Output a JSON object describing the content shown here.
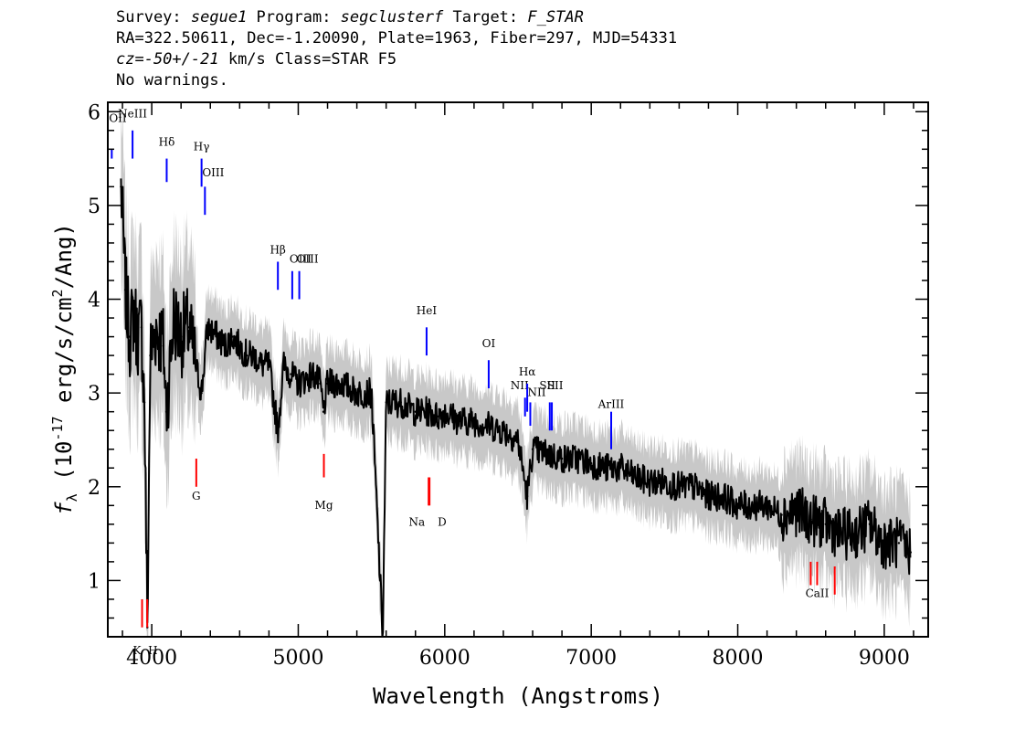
{
  "header": {
    "line1": {
      "survey_label": "Survey: ",
      "survey": "segue1",
      "program_label": " Program: ",
      "program": "segclusterf",
      "target_label": " Target: ",
      "target": "F_STAR"
    },
    "line2": "RA=322.50611, Dec=-1.20090, Plate=1963, Fiber=297, MJD=54331",
    "line3": {
      "cz": "cz=-50+/-21",
      "rest": " km/s Class=STAR F5"
    },
    "line4": "No warnings."
  },
  "colors": {
    "spectrum": "#000000",
    "error": "#c8c8c8",
    "emission_line": "#0000ff",
    "absorption_line": "#ff0000"
  },
  "chart_data": {
    "type": "line",
    "title": "",
    "xlabel": "Wavelength (Angstroms)",
    "ylabel": "f_λ (10^-17 erg/s/cm^2/Ang)",
    "xlim": [
      3700,
      9300
    ],
    "ylim": [
      0.4,
      6.1
    ],
    "xticks": [
      4000,
      5000,
      6000,
      7000,
      8000,
      9000
    ],
    "yticks": [
      1,
      2,
      3,
      4,
      5,
      6
    ],
    "grid": false,
    "series": [
      {
        "x": [
          3790,
          3820,
          3850,
          3880,
          3900,
          3930,
          3950,
          3970,
          3990,
          4030,
          4080,
          4100,
          4150,
          4200,
          4250,
          4300,
          4340,
          4380,
          4450,
          4500,
          4550,
          4600,
          4650,
          4700,
          4750,
          4800,
          4861,
          4900,
          4950,
          5000,
          5100,
          5150,
          5172,
          5200,
          5300,
          5400,
          5500,
          5577,
          5600,
          5700,
          5800,
          5890,
          5950,
          6000,
          6100,
          6200,
          6300,
          6400,
          6500,
          6563,
          6600,
          6700,
          6800,
          6900,
          7000,
          7100,
          7200,
          7300,
          7400,
          7500,
          7600,
          7700,
          7800,
          7900,
          8000,
          8100,
          8200,
          8300,
          8400,
          8500,
          8600,
          8700,
          8800,
          8900,
          9000,
          9100,
          9180
        ],
        "y": [
          5.2,
          4.1,
          3.6,
          3.9,
          3.6,
          3.7,
          2.9,
          0.5,
          3.4,
          3.7,
          3.5,
          2.8,
          3.8,
          3.6,
          3.7,
          3.3,
          3.0,
          3.7,
          3.6,
          3.5,
          3.6,
          3.5,
          3.4,
          3.4,
          3.3,
          3.3,
          2.6,
          3.3,
          3.2,
          3.1,
          3.2,
          3.1,
          2.8,
          3.1,
          3.1,
          3.0,
          3.0,
          0.4,
          2.9,
          2.9,
          2.8,
          2.8,
          2.75,
          2.8,
          2.7,
          2.7,
          2.65,
          2.6,
          2.5,
          1.9,
          2.4,
          2.35,
          2.3,
          2.3,
          2.25,
          2.2,
          2.2,
          2.1,
          2.05,
          2.05,
          2.0,
          2.0,
          1.9,
          1.9,
          1.8,
          1.8,
          1.8,
          1.7,
          1.75,
          1.65,
          1.6,
          1.5,
          1.5,
          1.6,
          1.4,
          1.4,
          1.3
        ]
      }
    ],
    "emission_lines": [
      {
        "label": "OII",
        "wave": 3727
      },
      {
        "label": "NeIII",
        "wave": 3869
      },
      {
        "label": "Hδ",
        "wave": 4102
      },
      {
        "label": "Hγ",
        "wave": 4340
      },
      {
        "label": "OIII",
        "wave": 4363
      },
      {
        "label": "Hβ",
        "wave": 4861
      },
      {
        "label": "OIII",
        "wave": 4959
      },
      {
        "label": "OIII",
        "wave": 5007
      },
      {
        "label": "HeI",
        "wave": 5876
      },
      {
        "label": "OI",
        "wave": 6300
      },
      {
        "label": "NII",
        "wave": 6548
      },
      {
        "label": "Hα",
        "wave": 6563
      },
      {
        "label": "NII",
        "wave": 6584
      },
      {
        "label": "SII",
        "wave": 6717
      },
      {
        "label": "SII",
        "wave": 6731
      },
      {
        "label": "ArIII",
        "wave": 7136
      }
    ],
    "absorption_lines": [
      {
        "label": "K",
        "wave": 3934
      },
      {
        "label": "H",
        "wave": 3969
      },
      {
        "label": "G",
        "wave": 4304
      },
      {
        "label": "Mg",
        "wave": 5175
      },
      {
        "label": "Na",
        "wave": 5890
      },
      {
        "label": "D",
        "wave": 5896
      },
      {
        "label": "CaII",
        "wave": 8498
      },
      {
        "label": "CaII",
        "wave": 8542
      },
      {
        "label": "CaII",
        "wave": 8662
      }
    ]
  }
}
